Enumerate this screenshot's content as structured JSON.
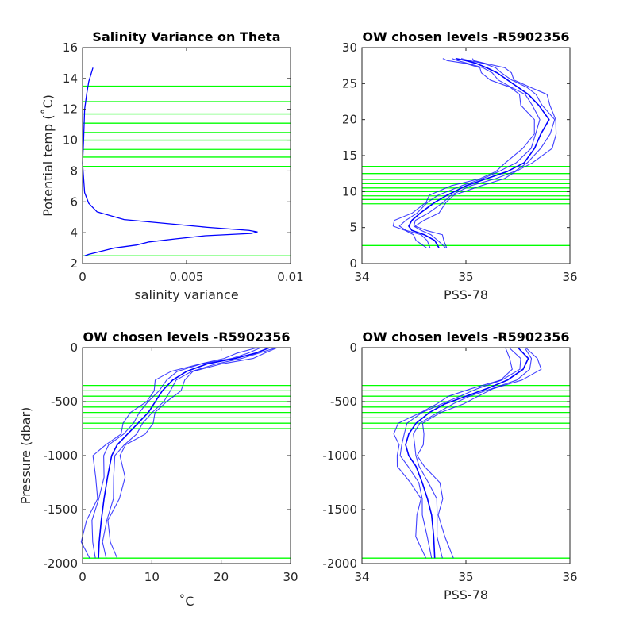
{
  "colors": {
    "profile": "#0000ff",
    "levels": "#00ff00",
    "axes": "#262626"
  },
  "chart_data": [
    {
      "type": "line",
      "title": "Salinity Variance on Theta",
      "xlabel": "salinity variance",
      "ylabel": "Potential temp (˚C)",
      "xlim": [
        0,
        0.01
      ],
      "ylim": [
        2,
        16
      ],
      "xticks": [
        0,
        0.005,
        0.01
      ],
      "xtick_labels": [
        "0",
        "0.005",
        "0.01"
      ],
      "yticks": [
        2,
        4,
        6,
        8,
        10,
        12,
        14,
        16
      ],
      "ytick_labels": [
        "2",
        "4",
        "6",
        "8",
        "10",
        "12",
        "14",
        "16"
      ],
      "grid": false,
      "series": [
        {
          "x": [
            0.0001,
            0.0003,
            0.0009,
            0.0015,
            0.0026,
            0.0032,
            0.0045,
            0.0059,
            0.0081,
            0.0084,
            0.008,
            0.006,
            0.004,
            0.002,
            0.0007,
            0.0003,
            0.0001,
            0.0
          ],
          "y": [
            2.5,
            2.6,
            2.8,
            3.0,
            3.2,
            3.4,
            3.6,
            3.8,
            3.95,
            4.05,
            4.15,
            4.35,
            4.6,
            4.85,
            5.35,
            5.9,
            6.6,
            8.5
          ]
        },
        {
          "x": [
            0.0,
            5e-05,
            0.0001,
            0.0002,
            0.0003,
            0.0005
          ],
          "y": [
            8.5,
            10.0,
            12.0,
            13.0,
            13.8,
            14.7
          ]
        }
      ],
      "levels": [
        2.5,
        8.3,
        8.9,
        9.4,
        10.0,
        10.5,
        11.1,
        11.7,
        12.5,
        13.5
      ]
    },
    {
      "type": "line",
      "title": "OW chosen levels -R5902356",
      "xlabel": "PSS-78",
      "ylabel": "",
      "xlim": [
        34,
        36
      ],
      "ylim": [
        0,
        30
      ],
      "xticks": [
        34,
        35,
        36
      ],
      "xtick_labels": [
        "34",
        "35",
        "36"
      ],
      "yticks": [
        0,
        5,
        10,
        15,
        20,
        25,
        30
      ],
      "ytick_labels": [
        "0",
        "5",
        "10",
        "15",
        "20",
        "25",
        "30"
      ],
      "grid": false,
      "series": [
        {
          "x": [
            34.74,
            34.7,
            34.6,
            34.48,
            34.45,
            34.48,
            34.56,
            34.7,
            34.82,
            35.0,
            35.2,
            35.4,
            35.56,
            35.66,
            35.72,
            35.8,
            35.7,
            35.6,
            35.5,
            35.4,
            35.3,
            35.2,
            35.1,
            35.0,
            34.9
          ],
          "y": [
            2.2,
            3.2,
            4.0,
            4.6,
            5.2,
            6.0,
            7.0,
            8.5,
            9.5,
            10.8,
            11.8,
            12.8,
            14.0,
            16.0,
            18.0,
            20.0,
            22.0,
            23.5,
            24.5,
            25.5,
            26.5,
            27.2,
            27.8,
            28.2,
            28.5
          ]
        }
      ],
      "levels": [
        2.5,
        8.3,
        8.9,
        9.4,
        10.0,
        10.5,
        11.1,
        11.7,
        12.5,
        13.5
      ]
    },
    {
      "type": "line",
      "title": "OW chosen levels -R5902356",
      "xlabel": "˚C",
      "ylabel": "Pressure (dbar)",
      "xlim": [
        0,
        30
      ],
      "ylim": [
        -2000,
        0
      ],
      "xticks": [
        0,
        10,
        20,
        30
      ],
      "xtick_labels": [
        "0",
        "10",
        "20",
        "30"
      ],
      "yticks": [
        0,
        -500,
        -1000,
        -1500,
        -2000
      ],
      "ytick_labels": [
        "0",
        "-500",
        "-1000",
        "-1500",
        "-2000"
      ],
      "grid": false,
      "series": [
        {
          "x": [
            27.0,
            25.0,
            22.0,
            18.0,
            15.0,
            13.0,
            11.5,
            10.5,
            9.5,
            8.0,
            6.5,
            5.0,
            4.2,
            3.6,
            3.1,
            2.7,
            2.4,
            2.3
          ],
          "y": [
            0,
            -50,
            -100,
            -150,
            -220,
            -300,
            -400,
            -500,
            -600,
            -700,
            -800,
            -900,
            -1000,
            -1200,
            -1400,
            -1600,
            -1800,
            -1950
          ]
        }
      ],
      "levels": [
        -350,
        -400,
        -450,
        -500,
        -550,
        -600,
        -650,
        -700,
        -750,
        -1950
      ]
    },
    {
      "type": "line",
      "title": "OW chosen levels -R5902356",
      "xlabel": "PSS-78",
      "ylabel": "",
      "xlim": [
        34,
        36
      ],
      "ylim": [
        -2000,
        0
      ],
      "xticks": [
        34,
        35,
        36
      ],
      "xtick_labels": [
        "34",
        "35",
        "36"
      ],
      "yticks": [
        0,
        -500,
        -1000,
        -1500,
        -2000
      ],
      "ytick_labels": [
        "0",
        "-500",
        "-1000",
        "-1500",
        "-2000"
      ],
      "grid": false,
      "series": [
        {
          "x": [
            35.5,
            35.6,
            35.55,
            35.4,
            35.2,
            35.0,
            34.8,
            34.65,
            34.52,
            34.45,
            34.42,
            34.45,
            34.52,
            34.58,
            34.63,
            34.67,
            34.69,
            34.7
          ],
          "y": [
            0,
            -100,
            -200,
            -300,
            -380,
            -450,
            -520,
            -600,
            -700,
            -800,
            -900,
            -1000,
            -1100,
            -1250,
            -1400,
            -1550,
            -1750,
            -1950
          ]
        }
      ],
      "levels": [
        -350,
        -400,
        -450,
        -500,
        -550,
        -600,
        -650,
        -700,
        -750,
        -1950
      ]
    }
  ]
}
